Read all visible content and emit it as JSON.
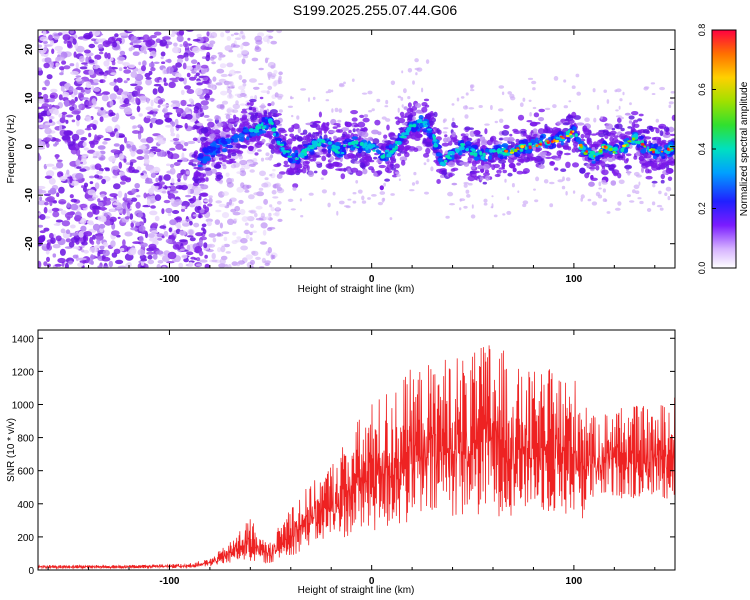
{
  "figure_title": "S199.2025.255.07.44.G06",
  "chart_data": [
    {
      "id": "spectrogram",
      "type": "heatmap",
      "title": "",
      "xlabel": "Height of straight line (km)",
      "ylabel": "Frequency (Hz)",
      "xlim": [
        -165,
        150
      ],
      "ylim": [
        -25,
        24
      ],
      "xticks": [
        -100,
        0,
        100
      ],
      "yticks": [
        -20,
        -10,
        0,
        10,
        20
      ],
      "colorbar": {
        "label": "Normalized spectral amplitude",
        "range": [
          0.0,
          0.8
        ],
        "ticks": [
          "0.0",
          "0.2",
          "0.4",
          "0.6",
          "0.8"
        ]
      },
      "ridge": {
        "description_points_x": [
          -85,
          -80,
          -75,
          -70,
          -65,
          -55,
          -50,
          -45,
          -40,
          -35,
          -30,
          -25,
          -20,
          -15,
          -10,
          -5,
          0,
          5,
          10,
          15,
          20,
          25,
          30,
          35,
          40,
          45,
          50,
          55,
          60,
          65,
          70,
          75,
          80,
          85,
          90,
          95,
          100,
          105,
          110,
          115,
          120,
          125,
          130,
          135,
          140,
          145,
          150
        ],
        "frequency_hz": [
          -3,
          -1,
          0,
          1,
          2,
          4,
          5,
          0,
          -2,
          -2,
          0,
          1,
          0,
          -1,
          1,
          0,
          0,
          -2,
          -1,
          2,
          4,
          5,
          3,
          -4,
          -1,
          0,
          -1,
          -2,
          -1,
          -1,
          -1,
          0,
          0,
          1,
          1,
          2,
          3,
          -1,
          -2,
          0,
          -1,
          0,
          2,
          0,
          -1,
          -1,
          0
        ]
      }
    },
    {
      "id": "snr",
      "type": "line",
      "title": "",
      "xlabel": "Height of straight line (km)",
      "ylabel": "SNR (10 * v/v)",
      "xlim": [
        -165,
        150
      ],
      "ylim": [
        0,
        1450
      ],
      "xticks": [
        -100,
        0,
        100
      ],
      "yticks": [
        0,
        200,
        400,
        600,
        800,
        1000,
        1200,
        1400
      ],
      "series": [
        {
          "name": "SNR",
          "color": "#ee2222",
          "envelope_x": [
            -165,
            -120,
            -90,
            -80,
            -70,
            -65,
            -60,
            -55,
            -50,
            -45,
            -40,
            -30,
            -20,
            -10,
            0,
            10,
            20,
            30,
            40,
            50,
            60,
            70,
            80,
            90,
            100,
            105,
            110,
            120,
            130,
            140,
            150
          ],
          "envelope_low": [
            10,
            10,
            12,
            20,
            40,
            60,
            50,
            40,
            40,
            60,
            80,
            150,
            180,
            200,
            220,
            240,
            280,
            300,
            320,
            320,
            320,
            330,
            360,
            330,
            320,
            300,
            420,
            440,
            420,
            440,
            420
          ],
          "envelope_high": [
            30,
            30,
            40,
            70,
            170,
            250,
            330,
            200,
            170,
            290,
            420,
            520,
            650,
            860,
            1020,
            1120,
            1220,
            1260,
            1320,
            1300,
            1440,
            1230,
            1200,
            1220,
            1170,
            1150,
            920,
            1010,
            1000,
            980,
            1060
          ]
        }
      ]
    }
  ],
  "colors": {
    "snr_line": "#ee2222",
    "axis": "#000000"
  }
}
